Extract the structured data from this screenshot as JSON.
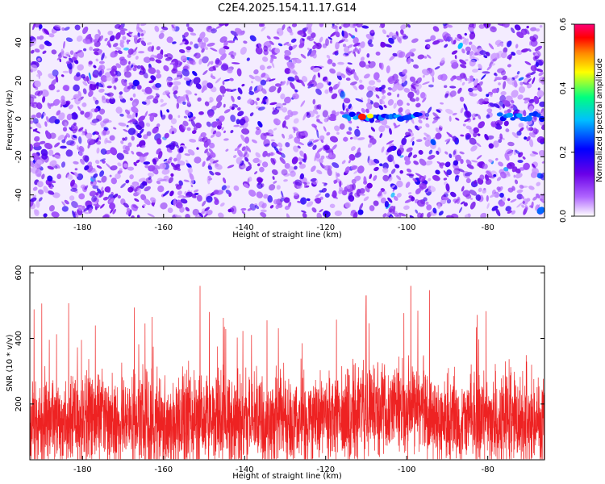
{
  "title": "C2E4.2025.154.11.17.G14",
  "colors": {
    "snr_line": "#ee2222",
    "colormap": [
      "#ffffff",
      "#b066ff",
      "#6a00e8",
      "#0000ff",
      "#00bfff",
      "#00ff7f",
      "#ffff00",
      "#ff8800",
      "#ff0000",
      "#ff0077"
    ]
  },
  "chart_data": [
    {
      "type": "heatmap",
      "name": "spectrogram",
      "xlabel": "Height of straight line (km)",
      "ylabel": "Frequency (Hz)",
      "xlim": [
        -193,
        -66
      ],
      "ylim": [
        -52,
        50
      ],
      "x_ticks": [
        "-180",
        "-160",
        "-140",
        "-120",
        "-100",
        "-80"
      ],
      "y_ticks": [
        "-40",
        "-20",
        "0",
        "20",
        "40"
      ],
      "colorbar": {
        "label": "Normalized spectral amplitude",
        "range": [
          0.0,
          0.6
        ],
        "ticks": [
          "0.0",
          "0.2",
          "0.4",
          "0.6"
        ]
      },
      "background_speckle": "purple noise across full frequency range",
      "signal_band": {
        "frequency_hz": 1,
        "segments": [
          {
            "x_start": -115,
            "x_end": -96
          },
          {
            "x_start": -77,
            "x_end": -66
          }
        ],
        "peak_x": -111,
        "peak_amplitude": 0.55
      }
    },
    {
      "type": "line",
      "name": "snr",
      "xlabel": "Height of straight line (km)",
      "ylabel": "SNR (10 * v/v)",
      "xlim": [
        -193,
        -66
      ],
      "ylim": [
        30,
        620
      ],
      "x_ticks": [
        "-180",
        "-160",
        "-140",
        "-120",
        "-100",
        "-80"
      ],
      "y_ticks": [
        "200",
        "400",
        "600"
      ],
      "baseline": 150,
      "noise_amplitude": 150,
      "notable_peaks": [
        {
          "x": -151,
          "y": 560
        },
        {
          "x": -110,
          "y": 530
        },
        {
          "x": -99,
          "y": 560
        },
        {
          "x": -66,
          "y": 620
        }
      ]
    }
  ]
}
